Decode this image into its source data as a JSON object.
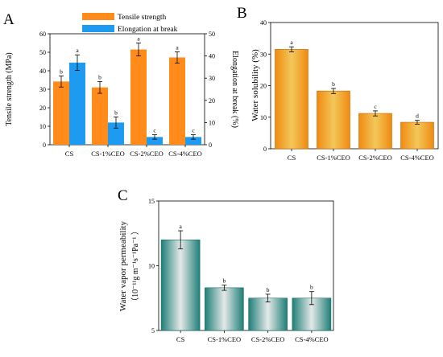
{
  "panels": {
    "A": "A",
    "B": "B",
    "C": "C"
  },
  "chart_data": [
    {
      "id": "A",
      "type": "bar",
      "categories": [
        "CS",
        "CS-1%CEO",
        "CS-2%CEO",
        "CS-4%CEO"
      ],
      "series": [
        {
          "name": "Tensile strength",
          "axis": "left",
          "color": "#ff8c1a",
          "values": [
            34.2,
            31.0,
            51.5,
            47.2
          ],
          "errors": [
            3.0,
            3.2,
            3.5,
            3.0
          ],
          "labels": [
            "b",
            "b",
            "a",
            "a"
          ]
        },
        {
          "name": "Elongation at break",
          "axis": "right",
          "color": "#1e9bf0",
          "values": [
            37.0,
            10.0,
            3.5,
            3.5
          ],
          "errors": [
            3.5,
            2.5,
            1.0,
            1.0
          ],
          "labels": [
            "a",
            "b",
            "c",
            "c"
          ]
        }
      ],
      "ylabel": "Tensile strength (MPa)",
      "ylim": [
        0,
        60
      ],
      "yticks": [
        0,
        10,
        20,
        30,
        40,
        50,
        60
      ],
      "y2label": "Elongation at break (%)",
      "y2lim": [
        0,
        50
      ],
      "y2ticks": [
        0,
        10,
        20,
        30,
        40,
        50
      ],
      "legend": "top"
    },
    {
      "id": "B",
      "type": "bar",
      "categories": [
        "CS",
        "CS-1%CEO",
        "CS-2%CEO",
        "CS-4%CEO"
      ],
      "series": [
        {
          "color": "#f5a31a",
          "values": [
            31.5,
            18.3,
            11.2,
            8.4
          ],
          "errors": [
            0.8,
            0.8,
            0.8,
            0.6
          ],
          "labels": [
            "a",
            "b",
            "c",
            "d"
          ]
        }
      ],
      "ylabel": "Water solubility (%)",
      "ylim": [
        0,
        40
      ],
      "yticks": [
        0,
        10,
        20,
        30,
        40
      ]
    },
    {
      "id": "C",
      "type": "bar",
      "categories": [
        "CS",
        "CS-1%CEO",
        "CS-2%CEO",
        "CS-4%CEO"
      ],
      "series": [
        {
          "color": "#2e8c82",
          "values": [
            12.0,
            8.3,
            7.5,
            7.5
          ],
          "errors": [
            0.7,
            0.2,
            0.3,
            0.5
          ],
          "labels": [
            "a",
            "b",
            "b",
            "b"
          ]
        }
      ],
      "ylabel_line1": "Water vapor permeability",
      "ylabel_line2": "（10⁻¹¹g m⁻¹s⁻¹Pa⁻¹ ）",
      "ylim": [
        5,
        15
      ],
      "yticks": [
        5,
        10,
        15
      ]
    }
  ]
}
